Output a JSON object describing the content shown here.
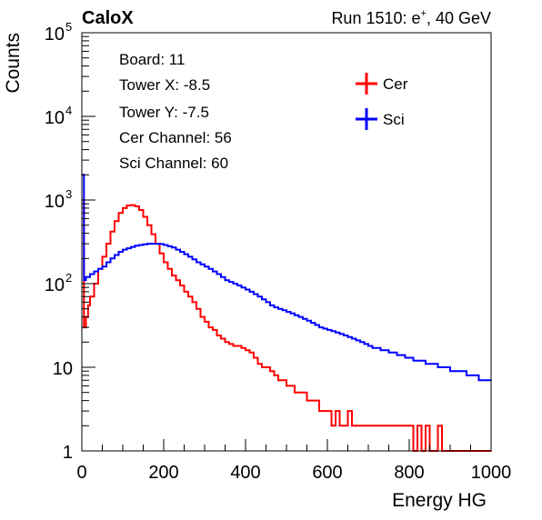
{
  "header": {
    "brand": "CaloX",
    "run_prefix": "Run 1510: e",
    "run_sup": "+",
    "run_suffix": ", 40 GeV"
  },
  "info_box": {
    "lines": [
      "Board: 11",
      "Tower X: -8.5",
      "Tower Y: -7.5",
      "Cer Channel: 56",
      "Sci Channel: 60"
    ]
  },
  "colors": {
    "cer": "#ff0000",
    "sci": "#0000ff",
    "axis": "#000000"
  },
  "chart_data": {
    "type": "line",
    "title": "",
    "xlabel": "Energy HG",
    "ylabel": "Counts",
    "xlim": [
      0,
      1000
    ],
    "ylim": [
      1,
      100000
    ],
    "y_scale": "log",
    "grid": false,
    "legend": {
      "placement": "top-right",
      "entries": [
        "Cer",
        "Sci"
      ]
    },
    "x_ticks": [
      0,
      200,
      400,
      600,
      800,
      1000
    ],
    "x_tick_labels": [
      "0",
      "200",
      "400",
      "600",
      "800",
      "1000"
    ],
    "y_ticks": [
      {
        "value": 1,
        "base": "1",
        "exp": ""
      },
      {
        "value": 10,
        "base": "10",
        "exp": ""
      },
      {
        "value": 100,
        "base": "10",
        "exp": "2"
      },
      {
        "value": 1000,
        "base": "10",
        "exp": "3"
      },
      {
        "value": 10000,
        "base": "10",
        "exp": "4"
      },
      {
        "value": 100000,
        "base": "10",
        "exp": "5"
      }
    ],
    "series": [
      {
        "name": "Cer",
        "color": "#ff0000",
        "x": [
          2,
          5,
          10,
          15,
          20,
          30,
          40,
          50,
          60,
          70,
          80,
          90,
          100,
          110,
          120,
          130,
          140,
          150,
          160,
          170,
          180,
          190,
          200,
          210,
          220,
          230,
          240,
          250,
          260,
          270,
          280,
          290,
          300,
          310,
          320,
          330,
          340,
          350,
          360,
          370,
          380,
          390,
          400,
          410,
          420,
          430,
          440,
          450,
          460,
          470,
          480,
          490,
          500,
          510,
          520,
          530,
          540,
          550,
          560,
          570,
          580,
          590,
          600,
          610,
          620,
          630,
          640,
          650,
          660,
          670,
          680,
          690,
          700,
          710,
          720,
          730,
          740,
          750,
          760,
          770,
          780,
          790,
          800,
          810,
          820,
          830,
          840,
          850,
          860,
          870,
          880,
          890,
          900,
          910,
          920,
          930,
          940,
          950,
          960,
          970,
          980,
          990,
          1000
        ],
        "y": [
          1000,
          30,
          40,
          55,
          70,
          100,
          150,
          210,
          300,
          420,
          560,
          700,
          800,
          860,
          870,
          840,
          760,
          630,
          500,
          390,
          300,
          230,
          180,
          150,
          125,
          110,
          95,
          80,
          70,
          60,
          50,
          40,
          35,
          30,
          28,
          24,
          22,
          20,
          19,
          18,
          18,
          17,
          16,
          15,
          13,
          11,
          10,
          10,
          9,
          8,
          7,
          7,
          6,
          6,
          5,
          5,
          5,
          4,
          4,
          4,
          3,
          3,
          3,
          2,
          3,
          2,
          2,
          3,
          2,
          2,
          2,
          2,
          2,
          2,
          2,
          2,
          2,
          2,
          2,
          2,
          2,
          2,
          2,
          1,
          2,
          1,
          2,
          1,
          1,
          2,
          1,
          1,
          1,
          1,
          1,
          1,
          1,
          1,
          1,
          1,
          1,
          1,
          1
        ]
      },
      {
        "name": "Sci",
        "color": "#0000ff",
        "x": [
          2,
          5,
          10,
          20,
          30,
          40,
          50,
          60,
          70,
          80,
          90,
          100,
          110,
          120,
          130,
          140,
          150,
          160,
          170,
          180,
          190,
          200,
          210,
          220,
          230,
          240,
          250,
          260,
          270,
          280,
          290,
          300,
          310,
          320,
          330,
          340,
          350,
          360,
          370,
          380,
          390,
          400,
          410,
          420,
          430,
          440,
          450,
          460,
          470,
          480,
          490,
          500,
          510,
          520,
          530,
          540,
          550,
          560,
          570,
          580,
          590,
          600,
          610,
          620,
          630,
          640,
          650,
          660,
          670,
          680,
          690,
          700,
          710,
          720,
          730,
          740,
          750,
          760,
          770,
          780,
          790,
          800,
          810,
          820,
          830,
          840,
          850,
          860,
          870,
          880,
          890,
          900,
          910,
          920,
          930,
          940,
          950,
          960,
          970,
          980,
          990,
          1000
        ],
        "y": [
          2000,
          110,
          120,
          130,
          140,
          150,
          160,
          180,
          200,
          220,
          240,
          255,
          265,
          275,
          285,
          290,
          295,
          300,
          300,
          300,
          298,
          290,
          280,
          270,
          255,
          240,
          225,
          210,
          195,
          180,
          170,
          160,
          150,
          140,
          130,
          120,
          110,
          105,
          100,
          95,
          90,
          85,
          80,
          75,
          70,
          65,
          60,
          55,
          52,
          50,
          48,
          46,
          44,
          42,
          40,
          38,
          36,
          34,
          32,
          30,
          29,
          28,
          27,
          26,
          25,
          24,
          23,
          22,
          21,
          20,
          19,
          18,
          17,
          17,
          16,
          16,
          15,
          15,
          14,
          14,
          13,
          13,
          12,
          12,
          12,
          11,
          11,
          11,
          10,
          10,
          10,
          9,
          9,
          9,
          9,
          8,
          8,
          8,
          7,
          7,
          7,
          7
        ]
      }
    ]
  }
}
